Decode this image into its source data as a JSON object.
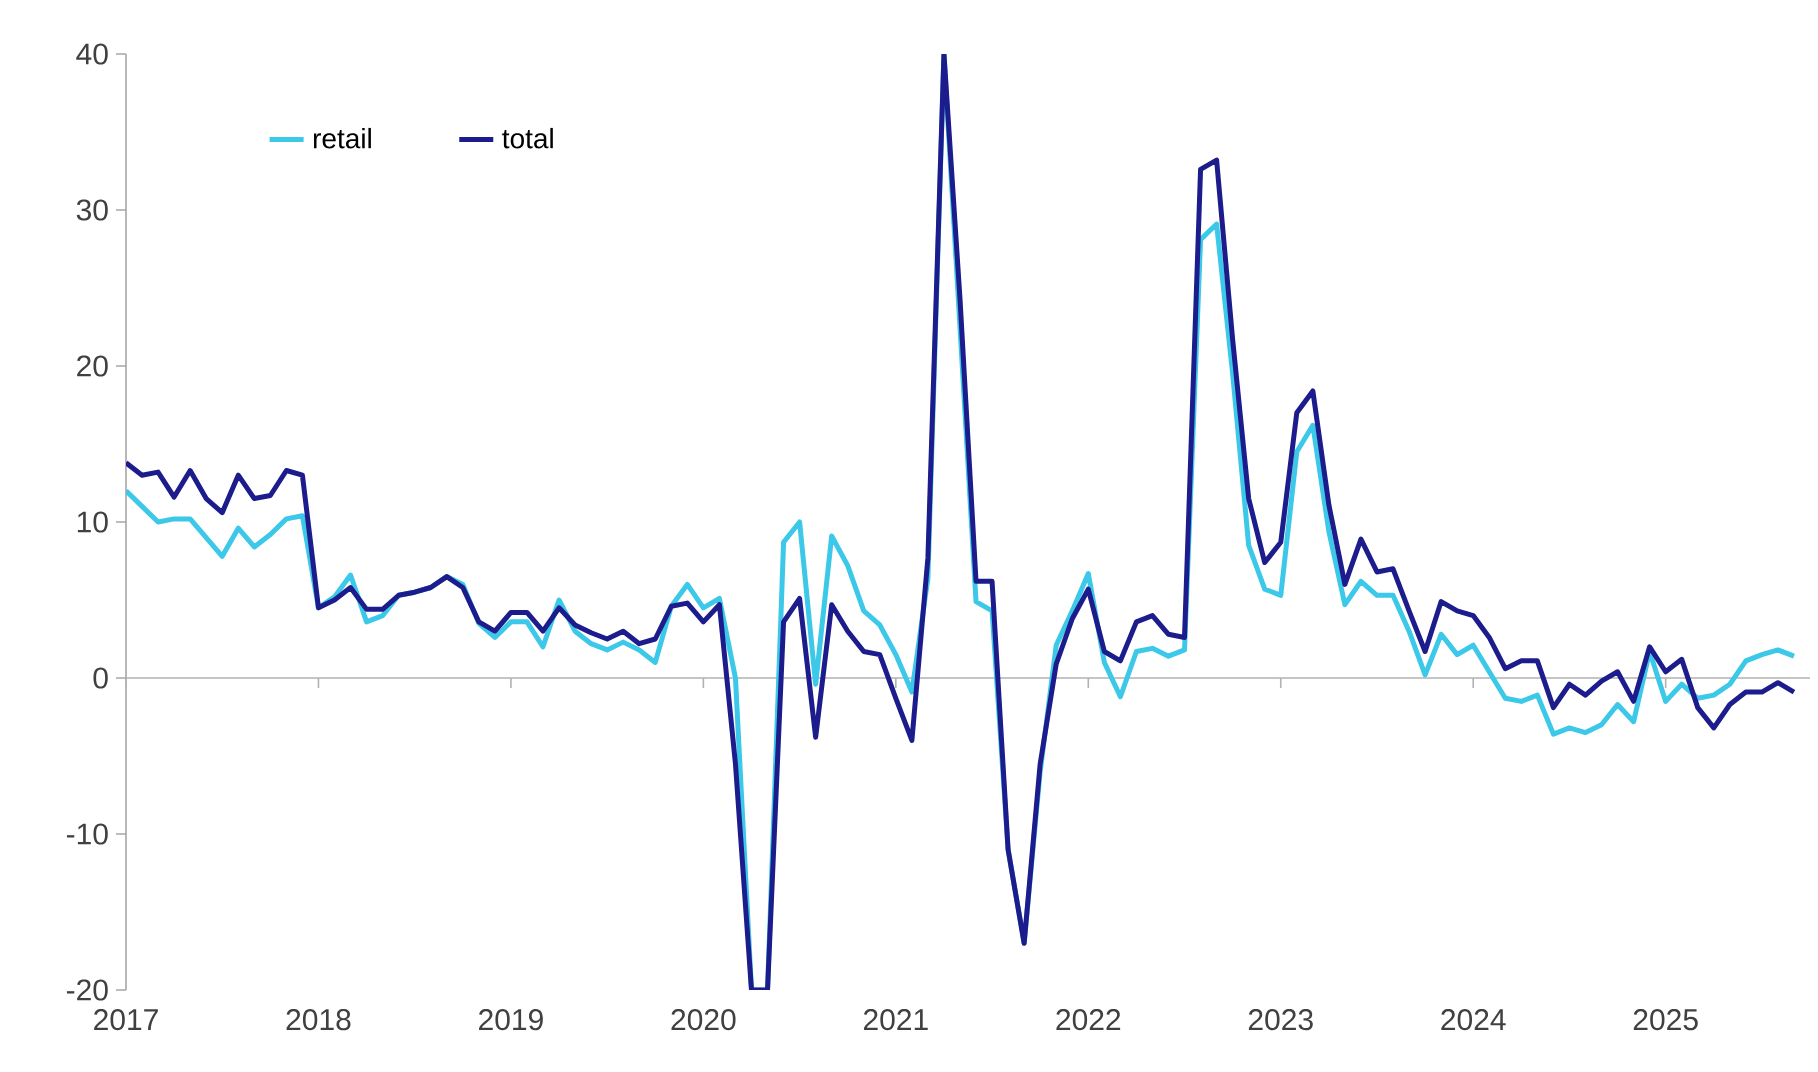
{
  "chart_data": {
    "type": "line",
    "x": [
      "2017-01",
      "2017-02",
      "2017-03",
      "2017-04",
      "2017-05",
      "2017-06",
      "2017-07",
      "2017-08",
      "2017-09",
      "2017-10",
      "2017-11",
      "2017-12",
      "2018-01",
      "2018-02",
      "2018-03",
      "2018-04",
      "2018-05",
      "2018-06",
      "2018-07",
      "2018-08",
      "2018-09",
      "2018-10",
      "2018-11",
      "2018-12",
      "2019-01",
      "2019-02",
      "2019-03",
      "2019-04",
      "2019-05",
      "2019-06",
      "2019-07",
      "2019-08",
      "2019-09",
      "2019-10",
      "2019-11",
      "2019-12",
      "2020-01",
      "2020-02",
      "2020-03",
      "2020-04",
      "2020-05",
      "2020-06",
      "2020-07",
      "2020-08",
      "2020-09",
      "2020-10",
      "2020-11",
      "2020-12",
      "2021-01",
      "2021-02",
      "2021-03",
      "2021-04",
      "2021-05",
      "2021-06",
      "2021-07",
      "2021-08",
      "2021-09",
      "2021-10",
      "2021-11",
      "2021-12",
      "2022-01",
      "2022-02",
      "2022-03",
      "2022-04",
      "2022-05",
      "2022-06",
      "2022-07",
      "2022-08",
      "2022-09",
      "2022-10",
      "2022-11",
      "2022-12",
      "2023-01",
      "2023-02",
      "2023-03",
      "2023-04",
      "2023-05",
      "2023-06",
      "2023-07",
      "2023-08",
      "2023-09",
      "2023-10",
      "2023-11",
      "2023-12",
      "2024-01",
      "2024-02",
      "2024-03",
      "2024-04",
      "2024-05",
      "2024-06",
      "2024-07",
      "2024-08",
      "2024-09",
      "2024-10",
      "2024-11",
      "2024-12",
      "2025-01",
      "2025-02",
      "2025-03",
      "2025-04",
      "2025-05",
      "2025-06",
      "2025-07",
      "2025-08",
      "2025-09"
    ],
    "series": [
      {
        "name": "retail",
        "color": "#3cc8e8",
        "values": [
          12.0,
          11.0,
          10.0,
          10.2,
          10.2,
          9.0,
          7.8,
          9.6,
          8.4,
          9.2,
          10.2,
          10.4,
          4.5,
          5.2,
          6.6,
          3.6,
          4.0,
          5.3,
          5.5,
          5.8,
          6.5,
          6.0,
          3.5,
          2.6,
          3.6,
          3.6,
          2.0,
          5.0,
          3.0,
          2.2,
          1.8,
          2.3,
          1.8,
          1.0,
          4.6,
          6.0,
          4.5,
          5.1,
          0,
          -20,
          -20,
          8.7,
          10.0,
          -0.4,
          9.1,
          7.2,
          4.3,
          3.4,
          1.5,
          -0.9,
          6.4,
          40,
          22.5,
          4.9,
          4.3,
          -11,
          -17,
          -6,
          2.1,
          4.3,
          6.7,
          1.0,
          -1.2,
          1.7,
          1.9,
          1.4,
          1.8,
          28.1,
          29.1,
          19.5,
          8.5,
          5.7,
          5.3,
          14.5,
          16.2,
          9.4,
          4.7,
          6.2,
          5.3,
          5.3,
          3.0,
          0.2,
          2.8,
          1.5,
          2.1,
          0.4,
          -1.3,
          -1.5,
          -1.1,
          -3.6,
          -3.2,
          -3.5,
          -3.0,
          -1.7,
          -2.8,
          1.7,
          -1.5,
          -0.4,
          -1.3,
          -1.1,
          -0.4,
          1.1,
          1.5,
          1.8,
          1.4
        ]
      },
      {
        "name": "total",
        "color": "#1c1c8c",
        "values": [
          13.8,
          13.0,
          13.2,
          11.6,
          13.3,
          11.5,
          10.6,
          13.0,
          11.5,
          11.7,
          13.3,
          13.0,
          4.5,
          5.0,
          5.8,
          4.4,
          4.4,
          5.3,
          5.5,
          5.8,
          6.5,
          5.8,
          3.6,
          3.0,
          4.2,
          4.2,
          3.0,
          4.5,
          3.4,
          2.9,
          2.5,
          3.0,
          2.2,
          2.5,
          4.6,
          4.8,
          3.6,
          4.7,
          -5.5,
          -20,
          -20,
          3.6,
          5.1,
          -3.8,
          4.7,
          3.0,
          1.7,
          1.5,
          -1.3,
          -4.0,
          7.7,
          40,
          24.3,
          6.2,
          6.2,
          -11,
          -17,
          -5.5,
          0.9,
          3.8,
          5.7,
          1.7,
          1.1,
          3.6,
          4.0,
          2.8,
          2.6,
          32.6,
          33.2,
          21.7,
          11.5,
          7.4,
          8.7,
          17.0,
          18.4,
          11.1,
          6.0,
          8.9,
          6.8,
          7.0,
          4.3,
          1.7,
          4.9,
          4.3,
          4.0,
          2.6,
          0.6,
          1.1,
          1.1,
          -1.9,
          -0.4,
          -1.1,
          -0.2,
          0.4,
          -1.5,
          2.0,
          0.4,
          1.2,
          -1.9,
          -3.2,
          -1.7,
          -0.9,
          -0.9,
          -0.3,
          -0.9
        ]
      }
    ],
    "xlim": [
      "2017-01",
      "2025-10"
    ],
    "xticks": [
      "2017",
      "2018",
      "2019",
      "2020",
      "2021",
      "2022",
      "2023",
      "2024",
      "2025"
    ],
    "ylim": [
      -20,
      40
    ],
    "yticks": [
      -20,
      -10,
      0,
      10,
      20,
      30,
      40
    ],
    "ref_lines": [
      {
        "axis": "y",
        "value": 0,
        "color": "#b2b2b2"
      }
    ],
    "legend": "top left",
    "grid": false,
    "marker": "none",
    "line_style": "solid"
  }
}
